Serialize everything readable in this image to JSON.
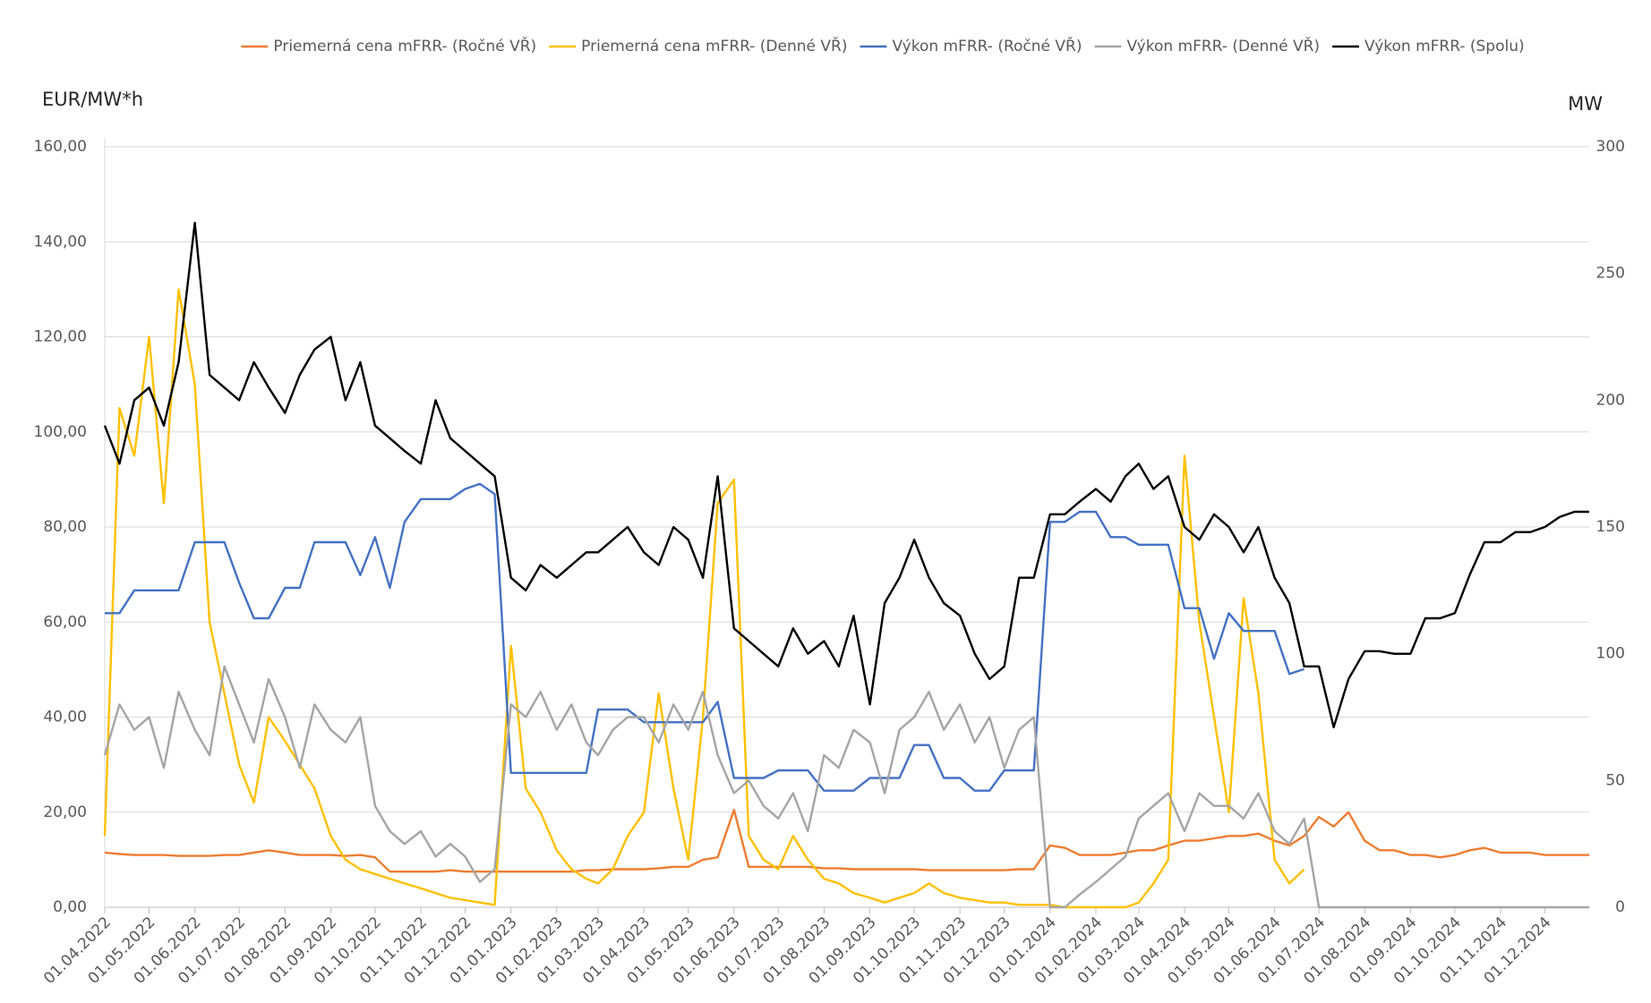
{
  "chart_data": {
    "type": "line",
    "y_label": "EUR/MW*h",
    "y2_label": "MW",
    "x": [
      "01.04.2022",
      "11.04.2022",
      "21.04.2022",
      "01.05.2022",
      "11.05.2022",
      "21.05.2022",
      "01.06.2022",
      "11.06.2022",
      "21.06.2022",
      "01.07.2022",
      "11.07.2022",
      "21.07.2022",
      "01.08.2022",
      "11.08.2022",
      "21.08.2022",
      "01.09.2022",
      "11.09.2022",
      "21.09.2022",
      "01.10.2022",
      "11.10.2022",
      "21.10.2022",
      "01.11.2022",
      "11.11.2022",
      "21.11.2022",
      "01.12.2022",
      "11.12.2022",
      "21.12.2022",
      "01.01.2023",
      "11.01.2023",
      "21.01.2023",
      "01.02.2023",
      "11.02.2023",
      "21.02.2023",
      "01.03.2023",
      "11.03.2023",
      "21.03.2023",
      "01.04.2023",
      "11.04.2023",
      "21.04.2023",
      "01.05.2023",
      "11.05.2023",
      "21.05.2023",
      "01.06.2023",
      "11.06.2023",
      "21.06.2023",
      "01.07.2023",
      "11.07.2023",
      "21.07.2023",
      "01.08.2023",
      "11.08.2023",
      "21.08.2023",
      "01.09.2023",
      "11.09.2023",
      "21.09.2023",
      "01.10.2023",
      "11.10.2023",
      "21.10.2023",
      "01.11.2023",
      "11.11.2023",
      "21.11.2023",
      "01.12.2023",
      "11.12.2023",
      "21.12.2023",
      "01.01.2024",
      "11.01.2024",
      "21.01.2024",
      "01.02.2024",
      "11.02.2024",
      "21.02.2024",
      "01.03.2024",
      "11.03.2024",
      "21.03.2024",
      "01.04.2024",
      "11.04.2024",
      "21.04.2024",
      "01.05.2024",
      "11.05.2024",
      "21.05.2024",
      "01.06.2024",
      "11.06.2024",
      "21.06.2024",
      "01.07.2024",
      "11.07.2024",
      "21.07.2024",
      "01.08.2024",
      "11.08.2024",
      "21.08.2024",
      "01.09.2024",
      "11.09.2024",
      "21.09.2024",
      "01.10.2024",
      "11.10.2024",
      "21.10.2024",
      "01.11.2024",
      "11.11.2024",
      "21.11.2024",
      "01.12.2024",
      "11.12.2024",
      "21.12.2024",
      "31.12.2024"
    ],
    "xlim": [
      "01.04.2022",
      "31.12.2024"
    ],
    "xticks": [
      "01.04.2022",
      "01.05.2022",
      "01.06.2022",
      "01.07.2022",
      "01.08.2022",
      "01.09.2022",
      "01.10.2022",
      "01.11.2022",
      "01.12.2022",
      "01.01.2023",
      "01.02.2023",
      "01.03.2023",
      "01.04.2023",
      "01.05.2023",
      "01.06.2023",
      "01.07.2023",
      "01.08.2023",
      "01.09.2023",
      "01.10.2023",
      "01.11.2023",
      "01.12.2023",
      "01.01.2024",
      "01.02.2024",
      "01.03.2024",
      "01.04.2024",
      "01.05.2024",
      "01.06.2024",
      "01.07.2024",
      "01.08.2024",
      "01.09.2024",
      "01.10.2024",
      "01.11.2024",
      "01.12.2024"
    ],
    "ylim": [
      0,
      160
    ],
    "yticks": [
      {
        "value": 0,
        "label": "0,00"
      },
      {
        "value": 20,
        "label": "20,00"
      },
      {
        "value": 40,
        "label": "40,00"
      },
      {
        "value": 60,
        "label": "60,00"
      },
      {
        "value": 80,
        "label": "80,00"
      },
      {
        "value": 100,
        "label": "100,00"
      },
      {
        "value": 120,
        "label": "120,00"
      },
      {
        "value": 140,
        "label": "140,00"
      },
      {
        "value": 160,
        "label": "160,00"
      }
    ],
    "y2lim": [
      0,
      300
    ],
    "y2ticks": [
      0,
      50,
      100,
      150,
      200,
      250,
      300
    ],
    "grid": true,
    "legend": "top",
    "series": [
      {
        "name": "Priemerná cena mFRR- (Ročné VŘ)",
        "color": "#ed7d31",
        "values": [
          11.5,
          11.2,
          11,
          11,
          11,
          10.8,
          10.8,
          10.8,
          11,
          11,
          11.5,
          12,
          11.5,
          11,
          11,
          11,
          10.8,
          11,
          10.5,
          7.5,
          7.5,
          7.5,
          7.5,
          7.8,
          7.5,
          7.5,
          7.5,
          7.5,
          7.5,
          7.5,
          7.5,
          7.5,
          7.8,
          7.8,
          8,
          8,
          8,
          8.2,
          8.5,
          8.5,
          10,
          10.5,
          20.5,
          8.5,
          8.5,
          8.5,
          8.5,
          8.5,
          8.2,
          8.2,
          8,
          8,
          8,
          8,
          8,
          7.8,
          7.8,
          7.8,
          7.8,
          7.8,
          7.8,
          8,
          8,
          13,
          12.5,
          11,
          11,
          11,
          11.5,
          12,
          12,
          13,
          14,
          14,
          14.5,
          15,
          15,
          15.5,
          14,
          13,
          15,
          19,
          17,
          20,
          14,
          12,
          12,
          11,
          11,
          10.5,
          11,
          12,
          12.5,
          11.5,
          11.5,
          11.5,
          11,
          11,
          11,
          11
        ]
      },
      {
        "name": "Priemerná cena mFRR- (Denné VŘ)",
        "color": "#ffc000",
        "values": [
          15,
          105,
          95,
          120,
          85,
          130,
          110,
          60,
          45,
          30,
          22,
          40,
          35,
          30,
          25,
          15,
          10,
          8,
          7,
          6,
          5,
          4,
          3,
          2,
          1.5,
          1,
          0.5,
          55,
          25,
          20,
          12,
          8,
          6,
          5,
          8,
          15,
          20,
          45,
          25,
          10,
          40,
          85,
          90,
          15,
          10,
          8,
          15,
          10,
          6,
          5,
          3,
          2,
          1,
          2,
          3,
          5,
          3,
          2,
          1.5,
          1,
          1,
          0.5,
          0.5,
          0.5,
          0,
          0,
          0,
          0,
          0,
          1,
          5,
          10,
          95,
          60,
          40,
          20,
          65,
          45,
          10,
          5,
          8,
          null,
          null,
          null,
          null,
          null,
          null,
          null,
          null,
          null,
          null,
          null,
          null,
          null,
          null,
          null,
          null,
          null,
          null,
          null
        ]
      },
      {
        "name": "Výkon mFRR- (Ročné VŘ)",
        "color": "#4472c4",
        "axis": "y2",
        "values": [
          116,
          116,
          125,
          125,
          125,
          125,
          144,
          144,
          144,
          128,
          114,
          114,
          126,
          126,
          144,
          144,
          144,
          131,
          146,
          126,
          152,
          161,
          161,
          161,
          165,
          167,
          163,
          53,
          53,
          53,
          53,
          53,
          53,
          78,
          78,
          78,
          73,
          73,
          73,
          73,
          73,
          81,
          51,
          51,
          51,
          54,
          54,
          54,
          46,
          46,
          46,
          51,
          51,
          51,
          64,
          64,
          51,
          51,
          46,
          46,
          54,
          54,
          54,
          152,
          152,
          156,
          156,
          146,
          146,
          143,
          143,
          143,
          118,
          118,
          98,
          116,
          109,
          109,
          109,
          92,
          94,
          null,
          null,
          null,
          null,
          null,
          null,
          null,
          null,
          null,
          null,
          null,
          null,
          null,
          null,
          null,
          null,
          null,
          null,
          null
        ]
      },
      {
        "name": "Výkon mFRR- (Denné VŘ)",
        "color": "#a5a5a5",
        "axis": "y2",
        "values": [
          60,
          80,
          70,
          75,
          55,
          85,
          70,
          60,
          95,
          80,
          65,
          90,
          75,
          55,
          80,
          70,
          65,
          75,
          40,
          30,
          25,
          30,
          20,
          25,
          20,
          10,
          15,
          80,
          75,
          85,
          70,
          80,
          65,
          60,
          70,
          75,
          75,
          65,
          80,
          70,
          85,
          60,
          45,
          50,
          40,
          35,
          45,
          30,
          60,
          55,
          70,
          65,
          45,
          70,
          75,
          85,
          70,
          80,
          65,
          75,
          55,
          70,
          75,
          0,
          0,
          5,
          10,
          15,
          20,
          35,
          40,
          45,
          30,
          45,
          40,
          40,
          35,
          45,
          30,
          25,
          35,
          0,
          0,
          0,
          0,
          0,
          0,
          0,
          0,
          0,
          0,
          0,
          0,
          0,
          0,
          0,
          0,
          0,
          0,
          0
        ]
      },
      {
        "name": "Výkon mFRR- (Spolu)",
        "color": "#000000",
        "axis": "y2",
        "values": [
          190,
          175,
          200,
          205,
          190,
          215,
          270,
          210,
          205,
          200,
          215,
          205,
          195,
          210,
          220,
          225,
          200,
          215,
          190,
          185,
          180,
          175,
          200,
          185,
          180,
          175,
          170,
          130,
          125,
          135,
          130,
          135,
          140,
          140,
          145,
          150,
          140,
          135,
          150,
          145,
          130,
          170,
          110,
          105,
          100,
          95,
          110,
          100,
          105,
          95,
          115,
          80,
          120,
          130,
          145,
          130,
          120,
          115,
          100,
          90,
          95,
          130,
          130,
          155,
          155,
          160,
          165,
          160,
          170,
          175,
          165,
          170,
          150,
          145,
          155,
          150,
          140,
          150,
          130,
          120,
          95,
          95,
          71,
          90,
          101,
          101,
          100,
          100,
          114,
          114,
          116,
          131,
          144,
          144,
          148,
          148,
          150,
          154,
          156,
          156
        ]
      }
    ]
  }
}
